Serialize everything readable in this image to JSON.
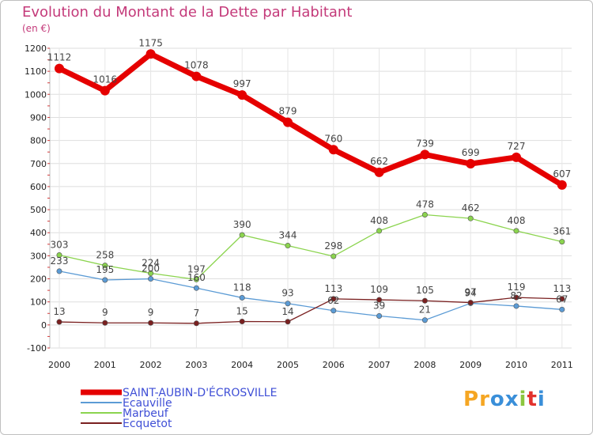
{
  "title": "Evolution du Montant de la Dette par Habitant",
  "unit_label": "(en €)",
  "brand": {
    "text": "Proxiti",
    "letters": [
      "P",
      "r",
      "o",
      "x",
      "i",
      "t",
      "i"
    ],
    "letter_colors": [
      "#f5a623",
      "#f5a623",
      "#3a8fd9",
      "#3a8fd9",
      "#8cc63f",
      "#e2322d",
      "#3a8fd9"
    ]
  },
  "chart_data": {
    "type": "line",
    "title": "Evolution du Montant de la Dette par Habitant",
    "ylabel": "(en €)",
    "xlabel": "",
    "x": [
      "2000",
      "2001",
      "2002",
      "2003",
      "2004",
      "2005",
      "2006",
      "2007",
      "2008",
      "2009",
      "2010",
      "2011"
    ],
    "ylim": [
      -100,
      1200
    ],
    "yticks": [
      -100,
      0,
      100,
      200,
      300,
      400,
      500,
      600,
      700,
      800,
      900,
      1000,
      1100,
      1200
    ],
    "grid": true,
    "legend_position": "bottom-left",
    "series": [
      {
        "name": "SAINT-AUBIN-D'ÉCROSVILLE",
        "color": "#e50000",
        "values": [
          1112,
          1016,
          1175,
          1078,
          997,
          879,
          760,
          662,
          739,
          699,
          727,
          607
        ]
      },
      {
        "name": "Ecauville",
        "color": "#5b9bd5",
        "values": [
          233,
          195,
          200,
          160,
          118,
          93,
          62,
          39,
          21,
          94,
          82,
          67
        ]
      },
      {
        "name": "Marbeuf",
        "color": "#8bd44e",
        "values": [
          303,
          258,
          224,
          197,
          390,
          344,
          298,
          408,
          478,
          462,
          408,
          361
        ]
      },
      {
        "name": "Ecquetot",
        "color": "#7a2020",
        "values": [
          13,
          9,
          9,
          7,
          15,
          14,
          113,
          109,
          105,
          97,
          119,
          113
        ]
      }
    ]
  }
}
